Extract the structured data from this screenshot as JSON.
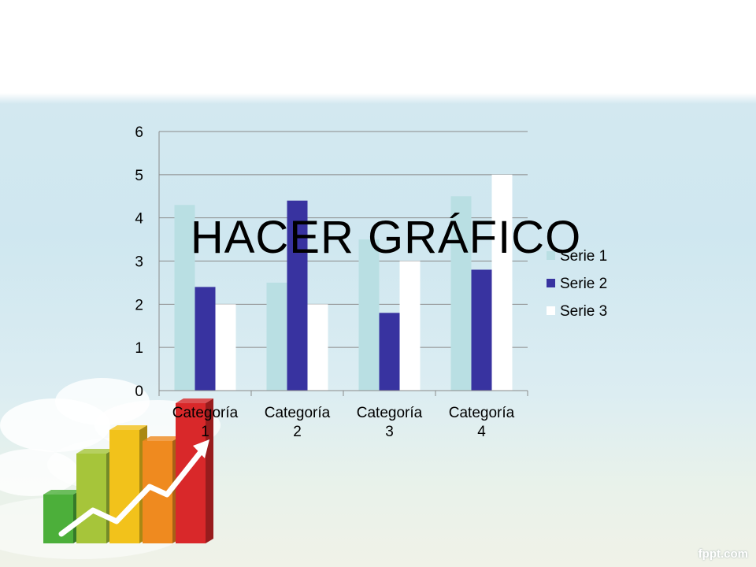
{
  "slide": {
    "title": "HACER GRÁFICO",
    "watermark": "fppt.com"
  },
  "decoration": {
    "icon": "bar-chart-growth-arrow-icon",
    "bar_colors": [
      "#4caf3a",
      "#a6c53a",
      "#f2c21b",
      "#ef8a1f",
      "#d9282a"
    ]
  },
  "chart_data": {
    "type": "bar",
    "categories": [
      "Categoría 1",
      "Categoría 2",
      "Categoría 3",
      "Categoría 4"
    ],
    "category_lines": [
      [
        "Categoría",
        "1"
      ],
      [
        "Categoría",
        "2"
      ],
      [
        "Categoría",
        "3"
      ],
      [
        "Categoría",
        "4"
      ]
    ],
    "series": [
      {
        "name": "Serie 1",
        "color": "#b9dfe3",
        "values": [
          4.3,
          2.5,
          3.5,
          4.5
        ]
      },
      {
        "name": "Serie 2",
        "color": "#3833a0",
        "values": [
          2.4,
          4.4,
          1.8,
          2.8
        ]
      },
      {
        "name": "Serie 3",
        "color": "#ffffff",
        "values": [
          2.0,
          2.0,
          3.0,
          5.0
        ]
      }
    ],
    "ylim": [
      0,
      6
    ],
    "yticks": [
      "0",
      "1",
      "2",
      "3",
      "4",
      "5",
      "6"
    ],
    "grid": true,
    "legend": "right",
    "title": "",
    "xlabel": "",
    "ylabel": ""
  }
}
